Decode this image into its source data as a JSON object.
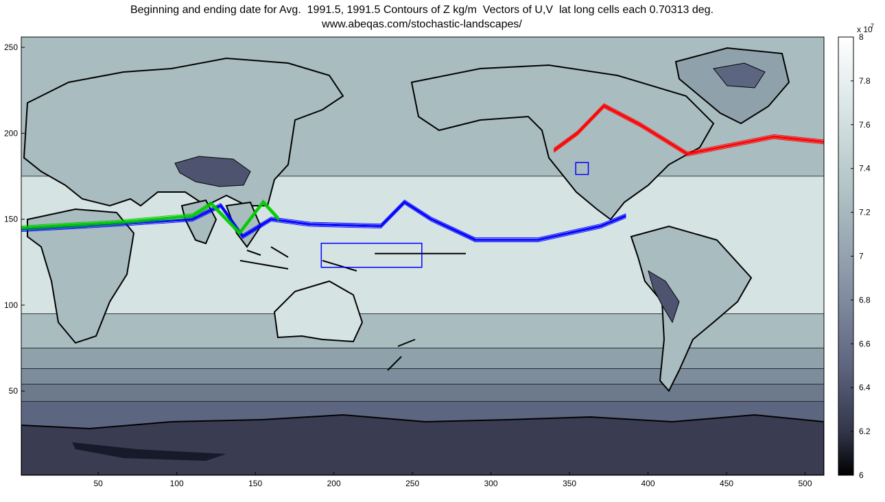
{
  "figure": {
    "title_line1": "Beginning and ending date for Avg.  1991.5, 1991.5 Contours of Z kg/m  Vectors of U,V  lat long cells each 0.70313 deg.",
    "title_line2": "www.abeqas.com/stochastic-landscapes/"
  },
  "chart_data": {
    "type": "heatmap",
    "title": "Beginning and ending date for Avg.  1991.5, 1991.5 Contours of Z kg/m  Vectors of U,V  lat long cells each 0.70313 deg.",
    "subtitle": "www.abeqas.com/stochastic-landscapes/",
    "x_ticks": [
      50,
      100,
      150,
      200,
      250,
      300,
      350,
      400,
      450,
      500
    ],
    "y_ticks": [
      50,
      100,
      150,
      200,
      250
    ],
    "xlim": [
      1,
      512
    ],
    "ylim": [
      1,
      256
    ],
    "colorbar": {
      "exponent_label": "x 10",
      "exponent_power": "7",
      "ticks": [
        "8",
        "7.8",
        "7.6",
        "7.4",
        "7.2",
        "7",
        "6.8",
        "6.6",
        "6.4",
        "6.2",
        "6"
      ],
      "range": [
        6,
        8
      ],
      "colormap": "bone"
    },
    "contour_bands": [
      {
        "y_from": 256,
        "y_to": 175,
        "color": "#a9bcc0"
      },
      {
        "y_from": 175,
        "y_to": 95,
        "color": "#d6e3e3"
      },
      {
        "y_from": 95,
        "y_to": 75,
        "color": "#a9bcc0"
      },
      {
        "y_from": 75,
        "y_to": 63,
        "color": "#8fa2ab"
      },
      {
        "y_from": 63,
        "y_to": 54,
        "color": "#7d8d9b"
      },
      {
        "y_from": 54,
        "y_to": 44,
        "color": "#6d7a8c"
      },
      {
        "y_from": 44,
        "y_to": 25,
        "color": "#5d6680"
      },
      {
        "y_from": 25,
        "y_to": 12,
        "color": "#4e5470"
      },
      {
        "y_from": 12,
        "y_to": 1,
        "color": "#3a3d52"
      }
    ],
    "trajectories": [
      {
        "color": "#ff0000",
        "points": [
          [
            340,
            190
          ],
          [
            355,
            200
          ],
          [
            372,
            216
          ],
          [
            395,
            205
          ],
          [
            425,
            188
          ],
          [
            480,
            198
          ],
          [
            512,
            195
          ]
        ]
      },
      {
        "color": "#0000ff",
        "points": [
          [
            1,
            144
          ],
          [
            60,
            147
          ],
          [
            110,
            150
          ],
          [
            128,
            158
          ],
          [
            142,
            140
          ],
          [
            160,
            150
          ],
          [
            185,
            147
          ],
          [
            230,
            146
          ],
          [
            245,
            160
          ],
          [
            262,
            150
          ],
          [
            290,
            138
          ],
          [
            330,
            138
          ],
          [
            370,
            146
          ],
          [
            386,
            152
          ]
        ]
      },
      {
        "color": "#00cc00",
        "points": [
          [
            1,
            145
          ],
          [
            60,
            148
          ],
          [
            110,
            152
          ],
          [
            122,
            159
          ],
          [
            140,
            142
          ],
          [
            155,
            160
          ],
          [
            165,
            150
          ]
        ]
      },
      {
        "color": "#000000",
        "points": [
          [
            226,
            130
          ],
          [
            284,
            130
          ]
        ]
      }
    ],
    "boxes": [
      {
        "color": "#0000ff",
        "x": [
          192,
          256
        ],
        "y": [
          122,
          136
        ]
      },
      {
        "color": "#0000ff",
        "x": [
          354,
          362
        ],
        "y": [
          176,
          183
        ]
      }
    ]
  }
}
